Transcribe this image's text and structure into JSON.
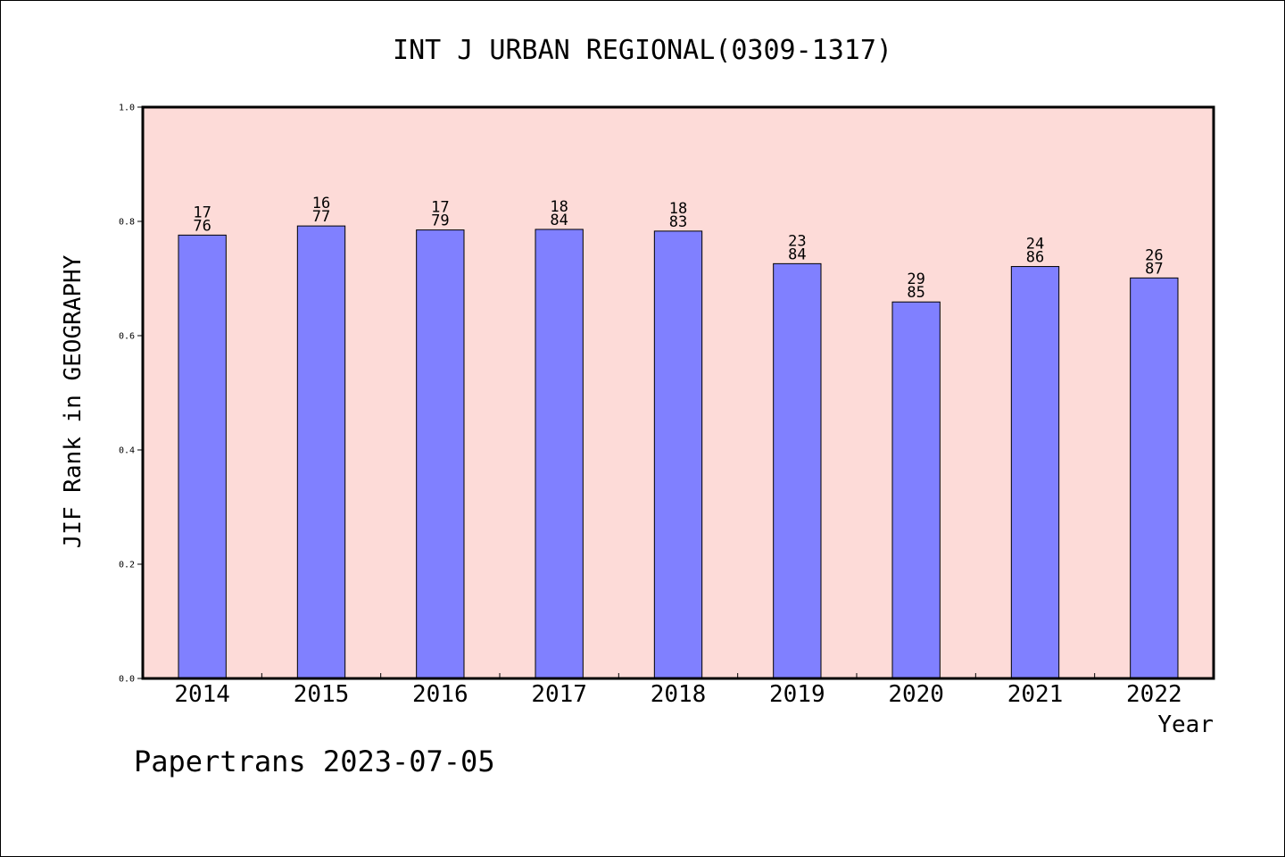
{
  "chart_data": {
    "type": "bar",
    "title": "INT J URBAN REGIONAL(0309-1317)",
    "xlabel": "Year",
    "ylabel": "JIF Rank in GEOGRAPHY",
    "ylim": [
      0,
      1.0
    ],
    "yticks": [
      "0.0",
      "0.2",
      "0.4",
      "0.6",
      "0.8",
      "1.0"
    ],
    "grid": false,
    "legend": "none",
    "categories": [
      "2014",
      "2015",
      "2016",
      "2017",
      "2018",
      "2019",
      "2020",
      "2021",
      "2022"
    ],
    "values": [
      0.776,
      0.792,
      0.785,
      0.786,
      0.783,
      0.726,
      0.659,
      0.721,
      0.701
    ],
    "rank": [
      "17",
      "16",
      "17",
      "18",
      "18",
      "23",
      "29",
      "24",
      "26"
    ],
    "total": [
      "76",
      "77",
      "79",
      "84",
      "83",
      "84",
      "85",
      "86",
      "87"
    ],
    "colors": {
      "plot_background": "#fddbd8",
      "bar_fill": "#8080ff",
      "bar_stroke": "#000000"
    }
  },
  "footer": {
    "watermark": "Papertrans 2023-07-05"
  }
}
